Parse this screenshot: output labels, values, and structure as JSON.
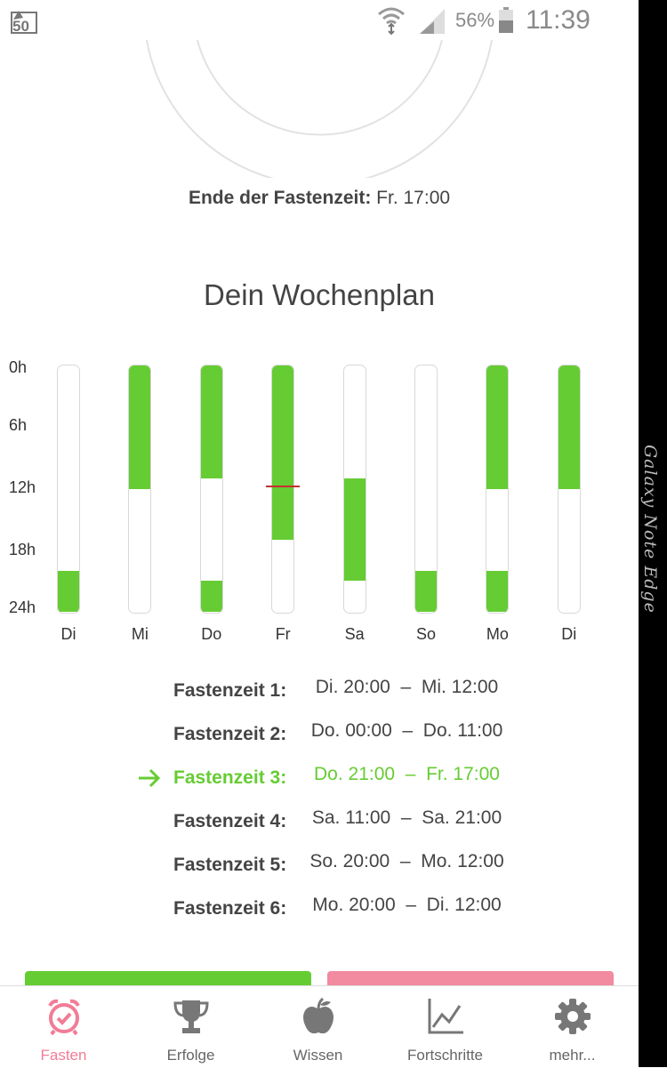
{
  "status_bar": {
    "notification_badge": "50",
    "battery_percent": "56%",
    "time": "11:39",
    "icons": [
      "notification-icon",
      "wifi-icon",
      "signal-icon",
      "battery-icon"
    ]
  },
  "device_edge_label": "Galaxy Note Edge",
  "fasting_end": {
    "label": "Ende der Fastenzeit:",
    "value": "Fr. 17:00"
  },
  "week_plan": {
    "title": "Dein Wochenplan"
  },
  "chart_data": {
    "type": "bar",
    "y_axis_ticks": [
      "0h",
      "6h",
      "12h",
      "18h",
      "24h"
    ],
    "ylim": [
      0,
      24
    ],
    "categories": [
      "Di",
      "Mi",
      "Do",
      "Fr",
      "Sa",
      "So",
      "Mo",
      "Di"
    ],
    "fasting_segments_hours": [
      [
        [
          20,
          24
        ]
      ],
      [
        [
          0,
          12
        ]
      ],
      [
        [
          0,
          11
        ],
        [
          21,
          24
        ]
      ],
      [
        [
          0,
          17
        ]
      ],
      [
        [
          11,
          21
        ]
      ],
      [
        [
          20,
          24
        ]
      ],
      [
        [
          0,
          12
        ],
        [
          20,
          24
        ]
      ],
      [
        [
          0,
          12
        ]
      ]
    ],
    "current_time_marker": {
      "day_index": 3,
      "hour": 11.65
    },
    "colors": {
      "fasting": "#66cc33",
      "marker": "#c53030"
    }
  },
  "fasting_periods": [
    {
      "label": "Fastenzeit 1:",
      "range": "Di. 20:00  –  Mi. 12:00",
      "active": false
    },
    {
      "label": "Fastenzeit 2:",
      "range": "Do. 00:00  –  Do. 11:00",
      "active": false
    },
    {
      "label": "Fastenzeit 3:",
      "range": "Do. 21:00  –  Fr. 17:00",
      "active": true
    },
    {
      "label": "Fastenzeit 4:",
      "range": "Sa. 11:00  –  Sa. 21:00",
      "active": false
    },
    {
      "label": "Fastenzeit 5:",
      "range": "So. 20:00  –  Mo. 12:00",
      "active": false
    },
    {
      "label": "Fastenzeit 6:",
      "range": "Mo. 20:00  –  Di. 12:00",
      "active": false
    }
  ],
  "bottom_nav": {
    "items": [
      {
        "label": "Fasten",
        "icon": "alarm-clock-icon",
        "active": true
      },
      {
        "label": "Erfolge",
        "icon": "trophy-icon",
        "active": false
      },
      {
        "label": "Wissen",
        "icon": "apple-icon",
        "active": false
      },
      {
        "label": "Fortschritte",
        "icon": "line-chart-icon",
        "active": false
      },
      {
        "label": "mehr...",
        "icon": "gear-icon",
        "active": false
      }
    ]
  },
  "colors": {
    "accent_green": "#66cc33",
    "accent_pink": "#f27c96",
    "text": "#444444"
  }
}
